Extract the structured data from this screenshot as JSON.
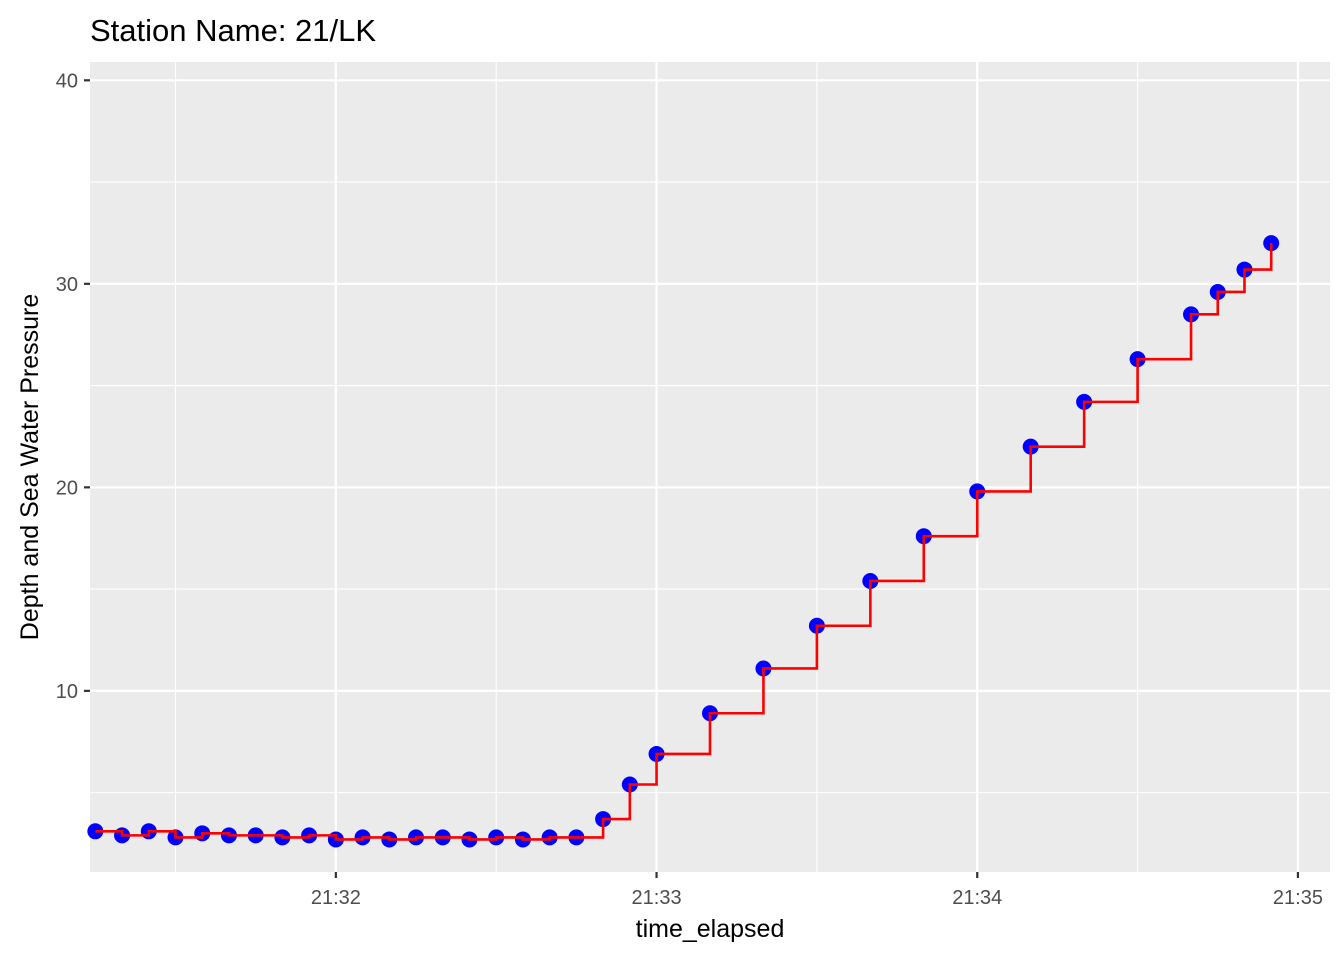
{
  "chart_data": {
    "type": "line",
    "title": "Station Name: 21/LK",
    "xlabel": "time_elapsed",
    "ylabel": "Depth and Sea Water Pressure",
    "x_unit": "minutes",
    "xlim": [
      "21:31:14",
      "21:35:06"
    ],
    "ylim": [
      1.1,
      40.9
    ],
    "x_ticks": [
      "21:32",
      "21:33",
      "21:34",
      "21:35"
    ],
    "y_ticks": [
      10,
      20,
      30,
      40
    ],
    "grid": true,
    "series": [
      {
        "color": "#0000ff",
        "marker": "point",
        "x": [
          "21:31:15",
          "21:31:20",
          "21:31:25",
          "21:31:30",
          "21:31:35",
          "21:31:40",
          "21:31:45",
          "21:31:50",
          "21:31:55",
          "21:32:00",
          "21:32:05",
          "21:32:10",
          "21:32:15",
          "21:32:20",
          "21:32:25",
          "21:32:30",
          "21:32:35",
          "21:32:40",
          "21:32:45",
          "21:32:50",
          "21:32:55",
          "21:33:00",
          "21:33:10",
          "21:33:20",
          "21:33:30",
          "21:33:40",
          "21:33:50",
          "21:34:00",
          "21:34:10",
          "21:34:20",
          "21:34:30",
          "21:34:40",
          "21:34:45",
          "21:34:50",
          "21:34:55"
        ],
        "y": [
          3.1,
          2.9,
          3.1,
          2.8,
          3.0,
          2.9,
          2.9,
          2.8,
          2.9,
          2.7,
          2.8,
          2.7,
          2.8,
          2.8,
          2.7,
          2.8,
          2.7,
          2.8,
          2.8,
          3.7,
          5.4,
          6.9,
          8.9,
          11.1,
          13.2,
          15.4,
          17.6,
          19.8,
          22.0,
          24.2,
          26.3,
          28.5,
          29.6,
          30.7,
          32.0
        ]
      },
      {
        "color": "#ff0000",
        "marker": "step",
        "x": [
          "21:31:15",
          "21:31:20",
          "21:31:25",
          "21:31:30",
          "21:31:35",
          "21:31:40",
          "21:31:45",
          "21:31:50",
          "21:31:55",
          "21:32:00",
          "21:32:05",
          "21:32:10",
          "21:32:15",
          "21:32:20",
          "21:32:25",
          "21:32:30",
          "21:32:35",
          "21:32:40",
          "21:32:45",
          "21:32:50",
          "21:32:55",
          "21:33:00",
          "21:33:10",
          "21:33:20",
          "21:33:30",
          "21:33:40",
          "21:33:50",
          "21:34:00",
          "21:34:10",
          "21:34:20",
          "21:34:30",
          "21:34:40",
          "21:34:45",
          "21:34:50",
          "21:34:55"
        ],
        "y": [
          3.1,
          2.9,
          3.1,
          2.8,
          3.0,
          2.9,
          2.9,
          2.8,
          2.9,
          2.7,
          2.8,
          2.7,
          2.8,
          2.8,
          2.7,
          2.8,
          2.7,
          2.8,
          2.8,
          3.7,
          5.4,
          6.9,
          8.9,
          11.1,
          13.2,
          15.4,
          17.6,
          19.8,
          22.0,
          24.2,
          26.3,
          28.5,
          29.6,
          30.7,
          32.0
        ]
      }
    ]
  },
  "colors": {
    "panel_background": "#ebebeb",
    "grid_major": "#ffffff",
    "points": "#0000ff",
    "line": "#ff0000"
  }
}
